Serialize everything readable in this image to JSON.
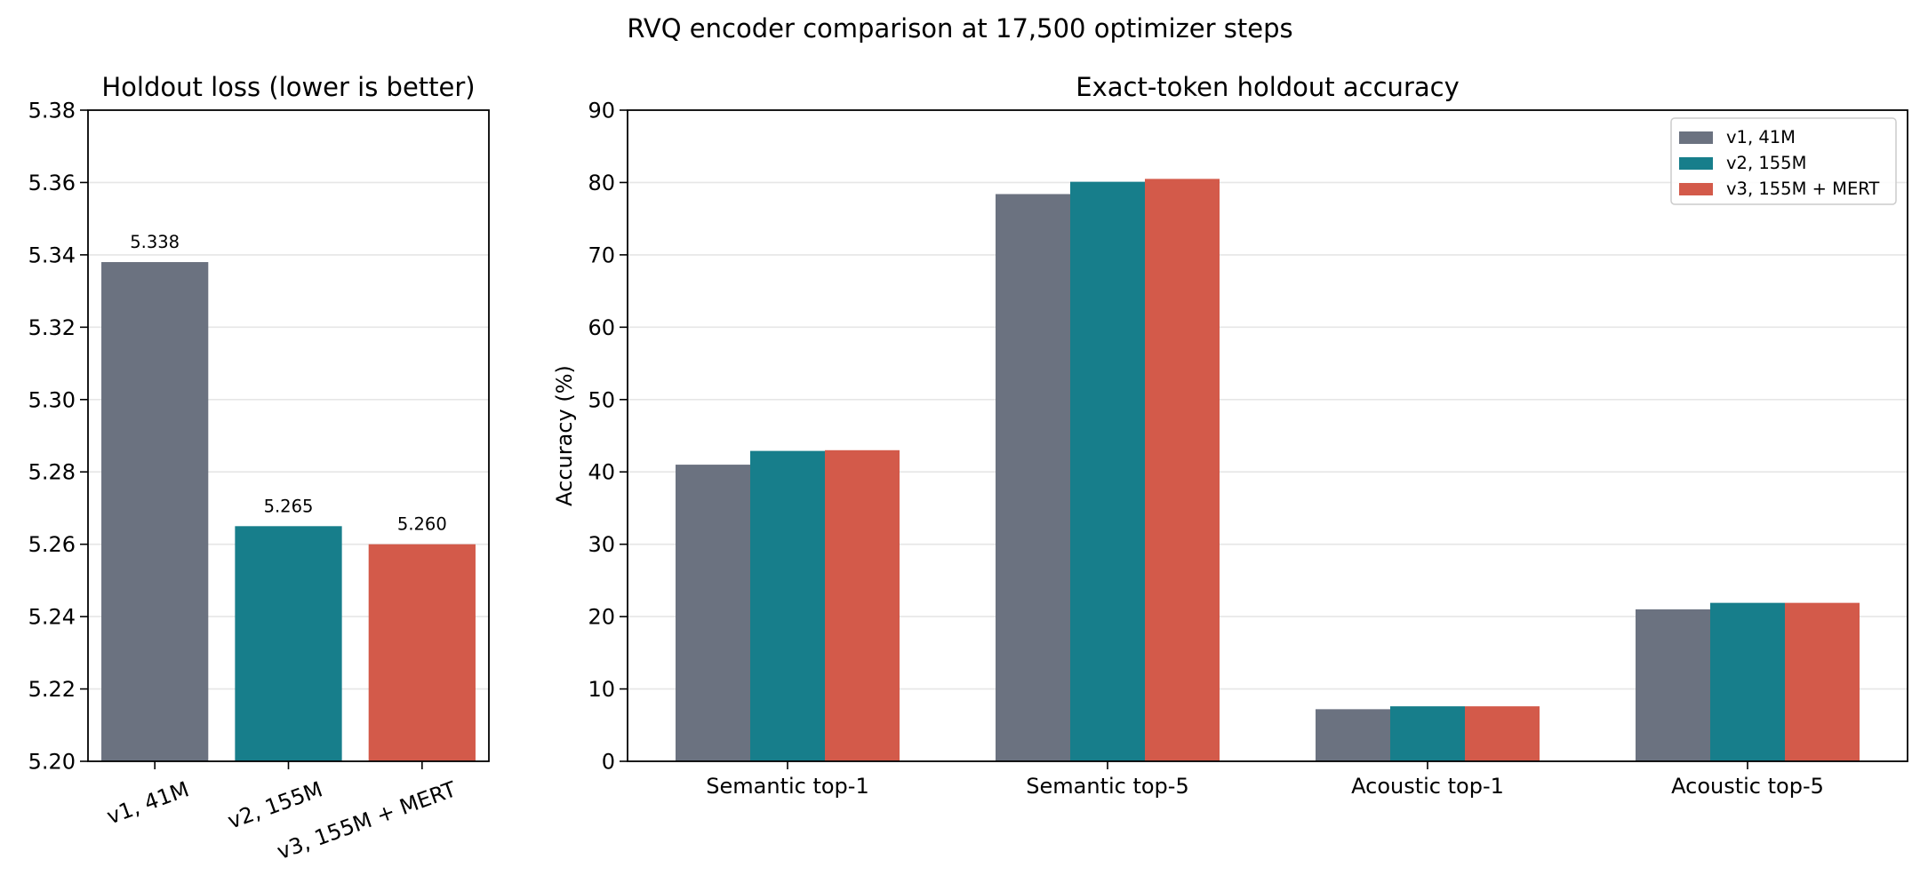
{
  "figure_title": "RVQ encoder comparison at 17,500 optimizer steps",
  "colors": {
    "v1": "#6b7280",
    "v2": "#177e8b",
    "v3": "#d35a4a"
  },
  "chart_data": [
    {
      "type": "bar",
      "title": "Holdout loss (lower is better)",
      "xlabel": "",
      "ylabel": "",
      "categories": [
        "v1, 41M",
        "v2, 155M",
        "v3, 155M + MERT"
      ],
      "values": [
        5.338,
        5.265,
        5.26
      ],
      "data_labels": [
        "5.338",
        "5.265",
        "5.260"
      ],
      "ylim": [
        5.2,
        5.38
      ],
      "yticks": [
        "5.20",
        "5.22",
        "5.24",
        "5.26",
        "5.28",
        "5.30",
        "5.32",
        "5.34",
        "5.36",
        "5.38"
      ],
      "grid": "horizontal",
      "xtick_rotation": "tilted"
    },
    {
      "type": "bar",
      "title": "Exact-token holdout accuracy",
      "xlabel": "",
      "ylabel": "Accuracy (%)",
      "categories": [
        "Semantic top-1",
        "Semantic top-5",
        "Acoustic top-1",
        "Acoustic top-5"
      ],
      "series": [
        {
          "name": "v1, 41M",
          "values": [
            41.0,
            78.4,
            7.2,
            21.0
          ]
        },
        {
          "name": "v2, 155M",
          "values": [
            42.9,
            80.1,
            7.6,
            21.9
          ]
        },
        {
          "name": "v3, 155M + MERT",
          "values": [
            43.0,
            80.5,
            7.6,
            21.9
          ]
        }
      ],
      "ylim": [
        0,
        90
      ],
      "yticks": [
        "0",
        "10",
        "20",
        "30",
        "40",
        "50",
        "60",
        "70",
        "80",
        "90"
      ],
      "grid": "horizontal",
      "legend": "top-right"
    }
  ]
}
